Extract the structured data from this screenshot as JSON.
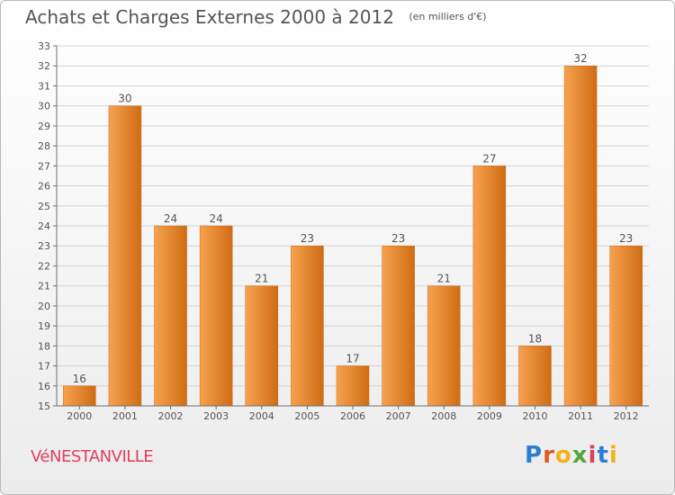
{
  "page": {
    "commune": "VéNESTANVILLE",
    "logo": {
      "text": "Proxiti",
      "colors": [
        "#2a7fd4",
        "#e05b1f",
        "#f2b21a",
        "#54a63a",
        "#e0405d",
        "#2a7fd4",
        "#f2b21a"
      ]
    }
  },
  "chart_data": {
    "type": "bar",
    "title": "Achats et Charges Externes 2000 à 2012",
    "subtitle": "(en milliers d'€)",
    "categories": [
      "2000",
      "2001",
      "2002",
      "2003",
      "2004",
      "2005",
      "2006",
      "2007",
      "2008",
      "2009",
      "2010",
      "2011",
      "2012"
    ],
    "values": [
      16,
      30,
      24,
      24,
      21,
      23,
      17,
      23,
      21,
      27,
      18,
      32,
      23
    ],
    "ylim": [
      15,
      33
    ],
    "yticks": [
      15,
      16,
      17,
      18,
      19,
      20,
      21,
      22,
      23,
      24,
      25,
      26,
      27,
      28,
      29,
      30,
      31,
      32,
      33
    ],
    "grid": true,
    "colors": {
      "bar_light": "#f7a24f",
      "bar_dark": "#cf6c14",
      "grid": "#d4d4d4",
      "axis": "#6e6e6e",
      "text": "#555555"
    }
  }
}
